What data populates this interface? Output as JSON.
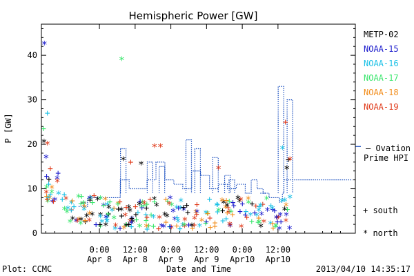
{
  "chart_data": {
    "type": "scatter",
    "title": "Hemispheric Power [GW]",
    "xlabel": "Date and Time",
    "ylabel": "P [GW]",
    "ylim": [
      0,
      47
    ],
    "xlim_hours": [
      -19.5,
      86
    ],
    "y_ticks": [
      0,
      10,
      20,
      30,
      40
    ],
    "x_ticks": [
      {
        "h": 0,
        "l1": "0:00",
        "l2": "Apr 8"
      },
      {
        "h": 12,
        "l1": "12:00",
        "l2": "Apr 8"
      },
      {
        "h": 24,
        "l1": "0:00",
        "l2": "Apr 9"
      },
      {
        "h": 36,
        "l1": "12:00",
        "l2": "Apr 9"
      },
      {
        "h": 48,
        "l1": "0:00",
        "l2": "Apr10"
      },
      {
        "h": 60,
        "l1": "12:00",
        "l2": "Apr10"
      }
    ],
    "x_unit_note": "hours relative to 2013-04-08 00:00 UT",
    "series": [
      {
        "name": "METP-02",
        "color": "#000000"
      },
      {
        "name": "NOAA-15",
        "color": "#1a1acc"
      },
      {
        "name": "NOAA-16",
        "color": "#19c0e6"
      },
      {
        "name": "NOAA-17",
        "color": "#39e66c"
      },
      {
        "name": "NOAA-18",
        "color": "#f28c1a"
      },
      {
        "name": "NOAA-19",
        "color": "#e03a1a"
      }
    ],
    "ovation": {
      "label1": "— Ovation",
      "label2": "Prime HPI",
      "color": "#1a4fc0",
      "steps": [
        [
          -7,
          6
        ],
        [
          -4,
          8
        ],
        [
          1,
          8
        ],
        [
          5,
          8
        ],
        [
          7,
          12
        ],
        [
          10,
          10
        ],
        [
          13,
          10
        ],
        [
          16,
          12
        ],
        [
          19,
          16
        ],
        [
          22,
          12
        ],
        [
          25,
          11
        ],
        [
          28,
          10
        ],
        [
          31,
          14
        ],
        [
          34,
          13
        ],
        [
          37,
          10
        ],
        [
          40,
          11
        ],
        [
          43,
          10
        ],
        [
          46,
          11
        ],
        [
          49,
          9
        ],
        [
          51,
          12
        ],
        [
          53,
          10
        ],
        [
          55,
          9
        ],
        [
          57,
          8
        ],
        [
          59,
          8
        ],
        [
          60.5,
          7
        ],
        [
          61.5,
          9
        ],
        [
          62,
          12
        ]
      ],
      "spikes": [
        [
          8,
          19
        ],
        [
          17,
          16
        ],
        [
          21,
          15
        ],
        [
          30,
          21
        ],
        [
          33,
          19
        ],
        [
          39,
          17
        ],
        [
          43,
          13
        ],
        [
          44.5,
          12
        ],
        [
          55,
          9
        ],
        [
          61,
          33
        ],
        [
          64,
          30
        ]
      ]
    },
    "legend_markers": {
      "south": "+  south",
      "north": "*  north"
    },
    "seed": 7
  },
  "footer": {
    "plot_label": "Plot: CCMC",
    "timestamp": "2013/04/10 14:35:17"
  }
}
